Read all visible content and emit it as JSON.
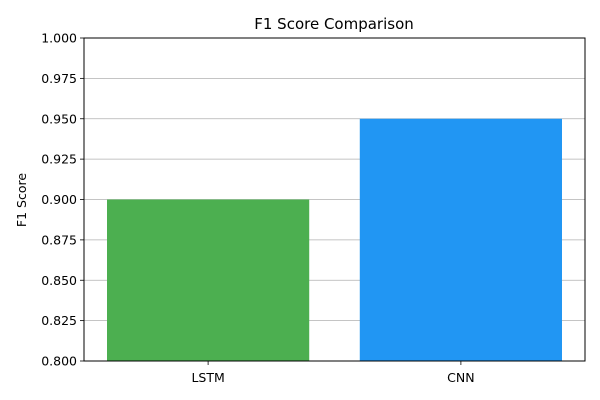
{
  "chart_data": {
    "type": "bar",
    "title": "F1 Score Comparison",
    "xlabel": "",
    "ylabel": "F1 Score",
    "categories": [
      "LSTM",
      "CNN"
    ],
    "values": [
      0.9,
      0.95
    ],
    "colors": [
      "#4caf50",
      "#2196f3"
    ],
    "ylim": [
      0.8,
      1.0
    ],
    "yticks": [
      "0.800",
      "0.825",
      "0.850",
      "0.875",
      "0.900",
      "0.925",
      "0.950",
      "0.975",
      "1.000"
    ],
    "grid": "horizontal",
    "legend": "none"
  }
}
